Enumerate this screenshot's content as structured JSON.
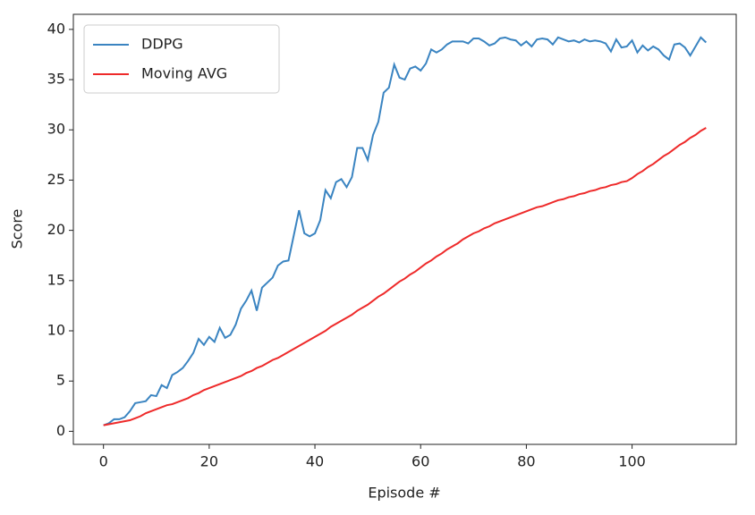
{
  "chart_data": {
    "type": "line",
    "x_label": "Episode #",
    "y_label": "Score",
    "x": [
      0,
      1,
      2,
      3,
      4,
      5,
      6,
      7,
      8,
      9,
      10,
      11,
      12,
      13,
      14,
      15,
      16,
      17,
      18,
      19,
      20,
      21,
      22,
      23,
      24,
      25,
      26,
      27,
      28,
      29,
      30,
      31,
      32,
      33,
      34,
      35,
      36,
      37,
      38,
      39,
      40,
      41,
      42,
      43,
      44,
      45,
      46,
      47,
      48,
      49,
      50,
      51,
      52,
      53,
      54,
      55,
      56,
      57,
      58,
      59,
      60,
      61,
      62,
      63,
      64,
      65,
      66,
      67,
      68,
      69,
      70,
      71,
      72,
      73,
      74,
      75,
      76,
      77,
      78,
      79,
      80,
      81,
      82,
      83,
      84,
      85,
      86,
      87,
      88,
      89,
      90,
      91,
      92,
      93,
      94,
      95,
      96,
      97,
      98,
      99,
      100,
      101,
      102,
      103,
      104,
      105,
      106,
      107,
      108,
      109,
      110,
      111,
      112,
      113,
      114
    ],
    "series": [
      {
        "name": "DDPG",
        "color": "#3a84c1",
        "values": [
          0.6,
          0.8,
          1.2,
          1.2,
          1.4,
          2.0,
          2.8,
          2.9,
          3.0,
          3.6,
          3.5,
          4.6,
          4.3,
          5.6,
          5.9,
          6.3,
          7.0,
          7.8,
          9.2,
          8.6,
          9.4,
          8.9,
          10.3,
          9.3,
          9.6,
          10.6,
          12.2,
          13.0,
          14.0,
          12.0,
          14.3,
          14.8,
          15.3,
          16.5,
          16.9,
          17.0,
          19.5,
          22.0,
          19.7,
          19.4,
          19.7,
          21.0,
          24.0,
          23.2,
          24.8,
          25.1,
          24.3,
          25.3,
          28.2,
          28.2,
          27.0,
          29.5,
          30.8,
          33.7,
          34.2,
          36.5,
          35.2,
          35.0,
          36.1,
          36.3,
          35.9,
          36.6,
          38.0,
          37.7,
          38.0,
          38.5,
          38.8,
          38.8,
          38.8,
          38.6,
          39.1,
          39.1,
          38.8,
          38.4,
          38.6,
          39.1,
          39.2,
          39.0,
          38.9,
          38.4,
          38.8,
          38.3,
          39.0,
          39.1,
          39.0,
          38.5,
          39.2,
          39.0,
          38.8,
          38.9,
          38.7,
          39.0,
          38.8,
          38.9,
          38.8,
          38.6,
          37.8,
          39.0,
          38.2,
          38.3,
          38.9,
          37.7,
          38.4,
          37.9,
          38.3,
          38.0,
          37.4,
          37.0,
          38.5,
          38.6,
          38.2,
          37.4,
          38.3,
          39.2,
          38.7
        ]
      },
      {
        "name": "Moving AVG",
        "color": "#ee2a2a",
        "values": [
          0.6,
          0.7,
          0.8,
          0.9,
          1.0,
          1.1,
          1.3,
          1.5,
          1.8,
          2.0,
          2.2,
          2.4,
          2.6,
          2.7,
          2.9,
          3.1,
          3.3,
          3.6,
          3.8,
          4.1,
          4.3,
          4.5,
          4.7,
          4.9,
          5.1,
          5.3,
          5.5,
          5.8,
          6.0,
          6.3,
          6.5,
          6.8,
          7.1,
          7.3,
          7.6,
          7.9,
          8.2,
          8.5,
          8.8,
          9.1,
          9.4,
          9.7,
          10.0,
          10.4,
          10.7,
          11.0,
          11.3,
          11.6,
          12.0,
          12.3,
          12.6,
          13.0,
          13.4,
          13.7,
          14.1,
          14.5,
          14.9,
          15.2,
          15.6,
          15.9,
          16.3,
          16.7,
          17.0,
          17.4,
          17.7,
          18.1,
          18.4,
          18.7,
          19.1,
          19.4,
          19.7,
          19.9,
          20.2,
          20.4,
          20.7,
          20.9,
          21.1,
          21.3,
          21.5,
          21.7,
          21.9,
          22.1,
          22.3,
          22.4,
          22.6,
          22.8,
          23.0,
          23.1,
          23.3,
          23.4,
          23.6,
          23.7,
          23.9,
          24.0,
          24.2,
          24.3,
          24.5,
          24.6,
          24.8,
          24.9,
          25.2,
          25.6,
          25.9,
          26.3,
          26.6,
          27.0,
          27.4,
          27.7,
          28.1,
          28.5,
          28.8,
          29.2,
          29.5,
          29.9,
          30.2
        ]
      }
    ],
    "xlim": [
      -5.7,
      119.7
    ],
    "ylim": [
      -1.3,
      41.5
    ],
    "xticks": [
      0,
      20,
      40,
      60,
      80,
      100
    ],
    "yticks": [
      0,
      5,
      10,
      15,
      20,
      25,
      30,
      35,
      40
    ],
    "legend": "upper left",
    "grid": false
  }
}
